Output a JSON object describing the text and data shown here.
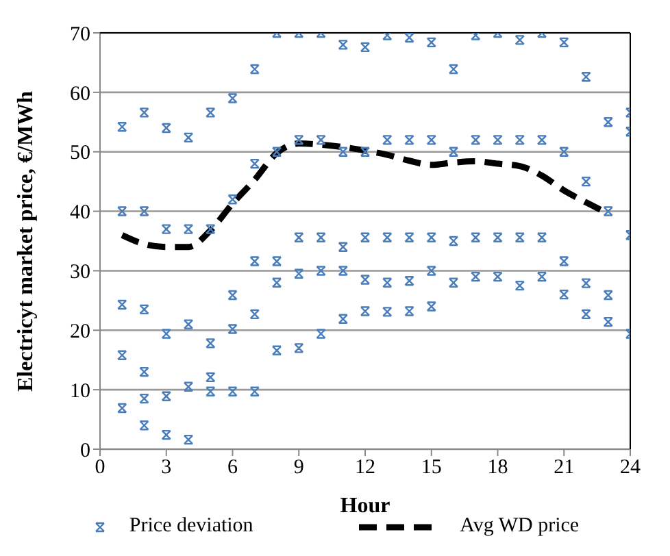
{
  "chart_data": {
    "type": "scatter",
    "xlabel": "Hour",
    "ylabel": "Electricyt market price, €/MWh",
    "xlim": [
      0,
      24
    ],
    "xticks": [
      0,
      3,
      6,
      9,
      12,
      15,
      18,
      21,
      24
    ],
    "ylim": [
      0,
      70
    ],
    "yticks": [
      0,
      10,
      20,
      30,
      40,
      50,
      60,
      70
    ],
    "grid": "y",
    "legend": "bottom",
    "series": [
      {
        "name": "Price deviation",
        "color": "#4a7ebb",
        "marker": "cross",
        "x": [
          1,
          1,
          1,
          1,
          1,
          2,
          2,
          2,
          2,
          2,
          2,
          3,
          3,
          3,
          3,
          3,
          4,
          4,
          4,
          4,
          4,
          5,
          5,
          5,
          5,
          5,
          6,
          6,
          6,
          6,
          6,
          7,
          7,
          7,
          7,
          7,
          8,
          8,
          8,
          8,
          8,
          9,
          9,
          9,
          9,
          9,
          10,
          10,
          10,
          10,
          10,
          11,
          11,
          11,
          11,
          11,
          12,
          12,
          12,
          12,
          12,
          13,
          13,
          13,
          13,
          13,
          14,
          14,
          14,
          14,
          14,
          15,
          15,
          15,
          15,
          15,
          16,
          16,
          16,
          16,
          17,
          17,
          17,
          17,
          18,
          18,
          18,
          18,
          19,
          19,
          19,
          19,
          20,
          20,
          20,
          20,
          21,
          21,
          21,
          21,
          22,
          22,
          22,
          22,
          23,
          23,
          23,
          23,
          24,
          24,
          24,
          24
        ],
        "values": [
          6.9,
          15.8,
          24.3,
          40,
          54.2,
          4,
          8.5,
          13,
          23.5,
          40,
          56.6,
          2.4,
          8.9,
          19.4,
          37,
          54,
          1.6,
          10.5,
          21,
          37,
          52.4,
          9.7,
          12.1,
          17.8,
          37,
          56.6,
          9.7,
          20.2,
          25.9,
          42,
          59,
          9.7,
          22.7,
          31.6,
          48,
          63.9,
          16.6,
          28,
          31.6,
          50,
          70,
          17,
          29.5,
          35.6,
          52,
          70,
          19.4,
          30,
          35.6,
          52,
          70,
          21.9,
          30,
          34,
          50,
          68,
          23.2,
          28.5,
          35.6,
          50,
          67.6,
          23.1,
          28,
          35.6,
          52,
          69.6,
          23.2,
          28.3,
          35.6,
          52,
          69.2,
          24,
          30,
          35.6,
          52,
          68.4,
          28,
          35,
          50,
          63.9,
          29,
          35.6,
          52,
          69.6,
          29,
          35.6,
          52,
          70,
          27.5,
          35.6,
          52,
          68.8,
          29,
          35.6,
          52,
          70,
          26,
          31.6,
          50,
          68.4,
          22.7,
          27.9,
          45,
          62.6,
          21.4,
          25.9,
          40,
          55,
          19.4,
          36,
          53.4,
          56.6
        ]
      },
      {
        "name": "Avg WD price",
        "type": "line",
        "color": "#000000",
        "line_style": "dashed",
        "marker": "none",
        "x": [
          1,
          2,
          3,
          4,
          5,
          6,
          7,
          8,
          9,
          10,
          11,
          12,
          13,
          14,
          15,
          16,
          17,
          18,
          19,
          20,
          21,
          22,
          23
        ],
        "values": [
          36,
          34.5,
          34,
          34,
          36.8,
          41.3,
          45.3,
          49.8,
          51.4,
          51.2,
          50.8,
          50.2,
          49.5,
          48.5,
          47.8,
          48.2,
          48.4,
          48,
          47.6,
          46,
          43.5,
          41.5,
          39.6
        ]
      }
    ]
  }
}
